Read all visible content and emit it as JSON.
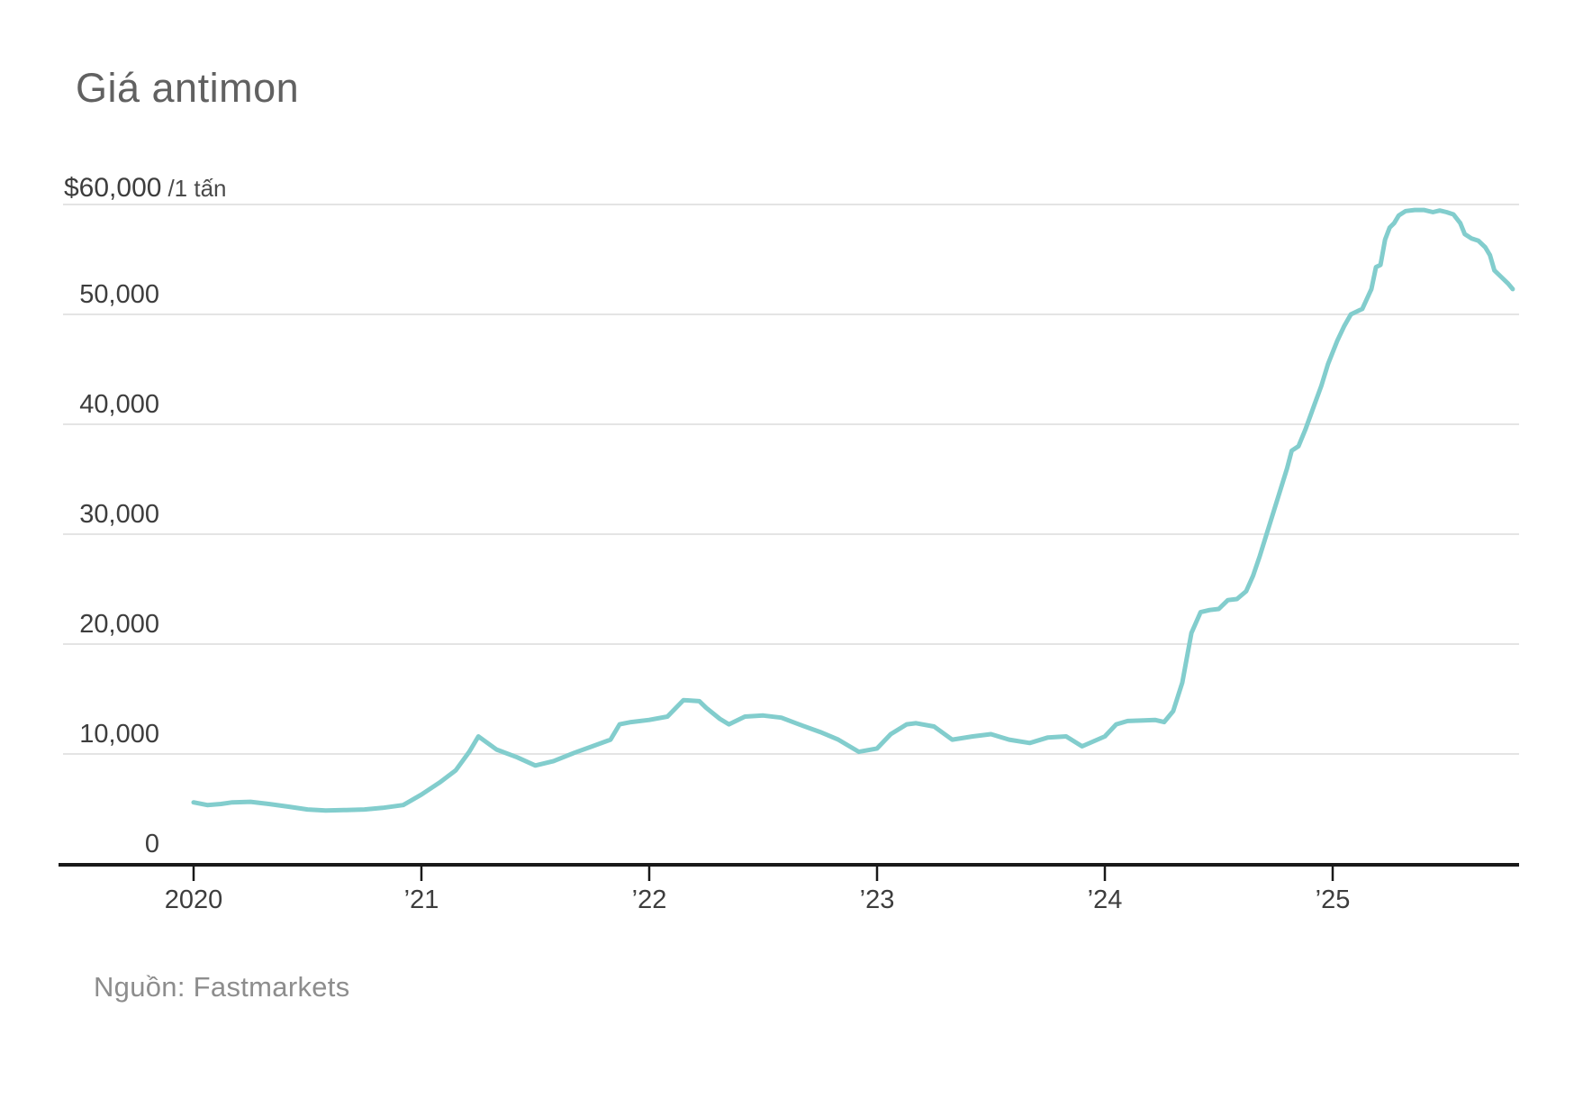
{
  "chart_data": {
    "type": "line",
    "title": "Giá antimon",
    "unit_label": "/1 tấn",
    "source": "Nguồn: Fastmarkets",
    "line_color": "#82cdcd",
    "grid_color": "#e4e4e4",
    "axis_color": "#191919",
    "xlabel": "",
    "ylabel": "USD / 1 tấn",
    "ylim": [
      0,
      60000
    ],
    "xlim_years": [
      2019.43,
      2025.81
    ],
    "grid": "horizontal-only",
    "legend": "none",
    "y_axis": {
      "max_label": "$60,000",
      "gridline_values": [
        10000,
        20000,
        30000,
        40000,
        50000,
        60000
      ],
      "ticks": [
        {
          "value": 50000,
          "label": "50,000"
        },
        {
          "value": 40000,
          "label": "40,000"
        },
        {
          "value": 30000,
          "label": "30,000"
        },
        {
          "value": 20000,
          "label": "20,000"
        },
        {
          "value": 10000,
          "label": "10,000"
        },
        {
          "value": 0,
          "label": "0"
        }
      ]
    },
    "x_axis": {
      "ticks": [
        {
          "year": 2020,
          "label": "2020"
        },
        {
          "year": 2021,
          "label": "’21"
        },
        {
          "year": 2022,
          "label": "’22"
        },
        {
          "year": 2023,
          "label": "’23"
        },
        {
          "year": 2024,
          "label": "’24"
        },
        {
          "year": 2025,
          "label": "’25"
        }
      ]
    },
    "series": [
      {
        "name": "Giá antimon (USD / 1 tấn)",
        "points": [
          [
            2020.0,
            5600
          ],
          [
            2020.06,
            5350
          ],
          [
            2020.12,
            5450
          ],
          [
            2020.17,
            5600
          ],
          [
            2020.25,
            5650
          ],
          [
            2020.33,
            5450
          ],
          [
            2020.42,
            5200
          ],
          [
            2020.5,
            4950
          ],
          [
            2020.58,
            4850
          ],
          [
            2020.67,
            4900
          ],
          [
            2020.75,
            4950
          ],
          [
            2020.83,
            5100
          ],
          [
            2020.92,
            5350
          ],
          [
            2021.0,
            6300
          ],
          [
            2021.08,
            7400
          ],
          [
            2021.15,
            8500
          ],
          [
            2021.21,
            10200
          ],
          [
            2021.25,
            11600
          ],
          [
            2021.33,
            10400
          ],
          [
            2021.42,
            9700
          ],
          [
            2021.5,
            8950
          ],
          [
            2021.58,
            9350
          ],
          [
            2021.67,
            10100
          ],
          [
            2021.75,
            10700
          ],
          [
            2021.83,
            11300
          ],
          [
            2021.87,
            12700
          ],
          [
            2021.92,
            12900
          ],
          [
            2022.0,
            13100
          ],
          [
            2022.08,
            13400
          ],
          [
            2022.15,
            14900
          ],
          [
            2022.22,
            14800
          ],
          [
            2022.25,
            14200
          ],
          [
            2022.31,
            13200
          ],
          [
            2022.35,
            12700
          ],
          [
            2022.42,
            13400
          ],
          [
            2022.5,
            13500
          ],
          [
            2022.58,
            13300
          ],
          [
            2022.67,
            12600
          ],
          [
            2022.75,
            12000
          ],
          [
            2022.83,
            11300
          ],
          [
            2022.92,
            10200
          ],
          [
            2023.0,
            10500
          ],
          [
            2023.06,
            11800
          ],
          [
            2023.13,
            12700
          ],
          [
            2023.17,
            12800
          ],
          [
            2023.25,
            12500
          ],
          [
            2023.33,
            11300
          ],
          [
            2023.42,
            11600
          ],
          [
            2023.5,
            11800
          ],
          [
            2023.58,
            11300
          ],
          [
            2023.67,
            11000
          ],
          [
            2023.75,
            11500
          ],
          [
            2023.83,
            11600
          ],
          [
            2023.9,
            10700
          ],
          [
            2024.0,
            11600
          ],
          [
            2024.05,
            12700
          ],
          [
            2024.1,
            13000
          ],
          [
            2024.17,
            13050
          ],
          [
            2024.22,
            13100
          ],
          [
            2024.26,
            12900
          ],
          [
            2024.3,
            13900
          ],
          [
            2024.34,
            16500
          ],
          [
            2024.38,
            21000
          ],
          [
            2024.42,
            22900
          ],
          [
            2024.46,
            23100
          ],
          [
            2024.5,
            23200
          ],
          [
            2024.54,
            24000
          ],
          [
            2024.58,
            24100
          ],
          [
            2024.62,
            24800
          ],
          [
            2024.65,
            26200
          ],
          [
            2024.68,
            28000
          ],
          [
            2024.71,
            30000
          ],
          [
            2024.74,
            32000
          ],
          [
            2024.77,
            34000
          ],
          [
            2024.8,
            36000
          ],
          [
            2024.82,
            37600
          ],
          [
            2024.85,
            38000
          ],
          [
            2024.88,
            39500
          ],
          [
            2024.92,
            41800
          ],
          [
            2024.95,
            43500
          ],
          [
            2024.98,
            45500
          ],
          [
            2025.02,
            47600
          ],
          [
            2025.05,
            48900
          ],
          [
            2025.08,
            50000
          ],
          [
            2025.13,
            50500
          ],
          [
            2025.17,
            52300
          ],
          [
            2025.19,
            54300
          ],
          [
            2025.21,
            54500
          ],
          [
            2025.23,
            56800
          ],
          [
            2025.25,
            57900
          ],
          [
            2025.27,
            58300
          ],
          [
            2025.29,
            59000
          ],
          [
            2025.32,
            59400
          ],
          [
            2025.36,
            59500
          ],
          [
            2025.4,
            59500
          ],
          [
            2025.44,
            59300
          ],
          [
            2025.47,
            59450
          ],
          [
            2025.5,
            59300
          ],
          [
            2025.53,
            59100
          ],
          [
            2025.56,
            58300
          ],
          [
            2025.58,
            57300
          ],
          [
            2025.61,
            56900
          ],
          [
            2025.64,
            56700
          ],
          [
            2025.67,
            56100
          ],
          [
            2025.69,
            55400
          ],
          [
            2025.71,
            54000
          ],
          [
            2025.74,
            53400
          ],
          [
            2025.77,
            52800
          ],
          [
            2025.79,
            52300
          ]
        ]
      }
    ]
  }
}
